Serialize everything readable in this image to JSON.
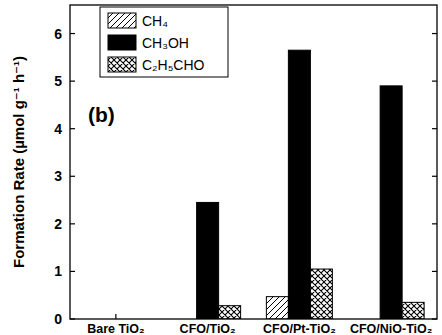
{
  "chart_data": {
    "type": "bar",
    "y_label": "Formation Rate (µmol g⁻¹ h⁻¹)",
    "annotation": "(b)",
    "categories": [
      "Bare TiO₂",
      "CFO/TiO₂",
      "CFO/Pt-TiO₂",
      "CFO/NiO-TiO₂"
    ],
    "series": [
      {
        "name": "CH₄",
        "color": "#000000",
        "values": [
          0,
          0,
          0.47,
          0
        ]
      },
      {
        "name": "CH₃OH",
        "color": "#000000",
        "values": [
          0,
          2.45,
          5.65,
          4.9
        ]
      },
      {
        "name": "C₂H₅CHO",
        "color": "#000000",
        "values": [
          0,
          0.28,
          1.05,
          0.35
        ]
      }
    ],
    "ylim": [
      0,
      6.6
    ],
    "yticks": [
      0,
      1,
      2,
      3,
      4,
      5,
      6
    ],
    "grid": false,
    "legend": "top-left"
  }
}
